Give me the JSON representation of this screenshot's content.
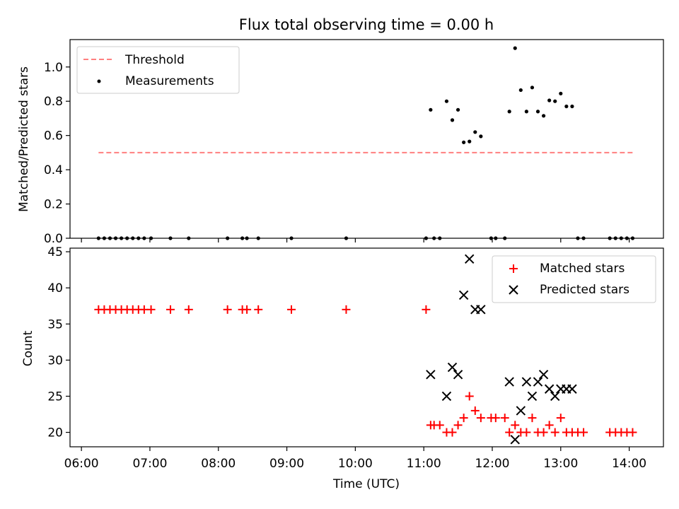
{
  "chart_data": [
    {
      "type": "scatter",
      "title": "Flux total observing time = 0.00 h",
      "xlabel": "",
      "ylabel": "Matched/Predicted stars",
      "xlim": [
        "05:50",
        "14:30"
      ],
      "ylim": [
        0,
        1.16
      ],
      "yticks": [
        "0.0",
        "0.2",
        "0.4",
        "0.6",
        "0.8",
        "1.0"
      ],
      "grid": false,
      "legend_position": "top-left",
      "threshold": {
        "name": "Threshold",
        "value": 0.5,
        "x_start": "06:15",
        "x_end": "14:03",
        "color": "#ff7f7f"
      },
      "series": [
        {
          "name": "Measurements",
          "color": "#000000",
          "points": [
            [
              "06:15",
              0
            ],
            [
              "06:20",
              0
            ],
            [
              "06:25",
              0
            ],
            [
              "06:30",
              0
            ],
            [
              "06:35",
              0
            ],
            [
              "06:40",
              0
            ],
            [
              "06:45",
              0
            ],
            [
              "06:50",
              0
            ],
            [
              "06:55",
              0
            ],
            [
              "07:01",
              0
            ],
            [
              "07:18",
              0
            ],
            [
              "07:34",
              0
            ],
            [
              "08:08",
              0
            ],
            [
              "08:21",
              0
            ],
            [
              "08:25",
              0
            ],
            [
              "08:35",
              0
            ],
            [
              "09:04",
              0
            ],
            [
              "09:52",
              0
            ],
            [
              "11:02",
              0
            ],
            [
              "11:06",
              0.75
            ],
            [
              "11:09",
              0
            ],
            [
              "11:14",
              0
            ],
            [
              "11:20",
              0.8
            ],
            [
              "11:25",
              0.69
            ],
            [
              "11:30",
              0.75
            ],
            [
              "11:35",
              0.56
            ],
            [
              "11:40",
              0.565
            ],
            [
              "11:45",
              0.62
            ],
            [
              "11:50",
              0.595
            ],
            [
              "11:59",
              0
            ],
            [
              "12:03",
              0
            ],
            [
              "12:11",
              0
            ],
            [
              "12:15",
              0.74
            ],
            [
              "12:20",
              1.11
            ],
            [
              "12:25",
              0.865
            ],
            [
              "12:30",
              0.74
            ],
            [
              "12:35",
              0.88
            ],
            [
              "12:40",
              0.74
            ],
            [
              "12:45",
              0.715
            ],
            [
              "12:50",
              0.805
            ],
            [
              "12:55",
              0.8
            ],
            [
              "13:00",
              0.845
            ],
            [
              "13:05",
              0.77
            ],
            [
              "13:10",
              0.77
            ],
            [
              "13:15",
              0
            ],
            [
              "13:20",
              0
            ],
            [
              "13:43",
              0
            ],
            [
              "13:48",
              0
            ],
            [
              "13:53",
              0
            ],
            [
              "13:58",
              0
            ],
            [
              "14:03",
              0
            ]
          ]
        }
      ]
    },
    {
      "type": "scatter",
      "title": "",
      "xlabel": "Time (UTC)",
      "ylabel": "Count",
      "xlim": [
        "05:50",
        "14:30"
      ],
      "ylim": [
        18,
        45.5
      ],
      "yticks": [
        "20",
        "25",
        "30",
        "35",
        "40",
        "45"
      ],
      "xticks": [
        "06:00",
        "07:00",
        "08:00",
        "09:00",
        "10:00",
        "11:00",
        "12:00",
        "13:00",
        "14:00"
      ],
      "grid": false,
      "legend_position": "top-right",
      "series": [
        {
          "name": "Matched stars",
          "marker": "plus",
          "color": "#ff0000",
          "points": [
            [
              "06:15",
              37
            ],
            [
              "06:20",
              37
            ],
            [
              "06:25",
              37
            ],
            [
              "06:30",
              37
            ],
            [
              "06:35",
              37
            ],
            [
              "06:40",
              37
            ],
            [
              "06:45",
              37
            ],
            [
              "06:50",
              37
            ],
            [
              "06:55",
              37
            ],
            [
              "07:01",
              37
            ],
            [
              "07:18",
              37
            ],
            [
              "07:34",
              37
            ],
            [
              "08:08",
              37
            ],
            [
              "08:21",
              37
            ],
            [
              "08:25",
              37
            ],
            [
              "08:35",
              37
            ],
            [
              "09:04",
              37
            ],
            [
              "09:52",
              37
            ],
            [
              "11:02",
              37
            ],
            [
              "11:06",
              21
            ],
            [
              "11:09",
              21
            ],
            [
              "11:14",
              21
            ],
            [
              "11:20",
              20
            ],
            [
              "11:25",
              20
            ],
            [
              "11:30",
              21
            ],
            [
              "11:35",
              22
            ],
            [
              "11:40",
              25
            ],
            [
              "11:45",
              23
            ],
            [
              "11:50",
              22
            ],
            [
              "11:59",
              22
            ],
            [
              "12:03",
              22
            ],
            [
              "12:11",
              22
            ],
            [
              "12:15",
              20
            ],
            [
              "12:20",
              21
            ],
            [
              "12:25",
              20
            ],
            [
              "12:30",
              20
            ],
            [
              "12:35",
              22
            ],
            [
              "12:40",
              20
            ],
            [
              "12:45",
              20
            ],
            [
              "12:50",
              21
            ],
            [
              "12:55",
              20
            ],
            [
              "13:00",
              22
            ],
            [
              "13:05",
              20
            ],
            [
              "13:10",
              20
            ],
            [
              "13:15",
              20
            ],
            [
              "13:20",
              20
            ],
            [
              "13:43",
              20
            ],
            [
              "13:48",
              20
            ],
            [
              "13:53",
              20
            ],
            [
              "13:58",
              20
            ],
            [
              "14:03",
              20
            ]
          ]
        },
        {
          "name": "Predicted stars",
          "marker": "x",
          "color": "#000000",
          "points": [
            [
              "11:06",
              28
            ],
            [
              "11:20",
              25
            ],
            [
              "11:25",
              29
            ],
            [
              "11:30",
              28
            ],
            [
              "11:35",
              39
            ],
            [
              "11:40",
              44
            ],
            [
              "11:45",
              37
            ],
            [
              "11:50",
              37
            ],
            [
              "12:15",
              27
            ],
            [
              "12:20",
              19
            ],
            [
              "12:25",
              23
            ],
            [
              "12:30",
              27
            ],
            [
              "12:35",
              25
            ],
            [
              "12:40",
              27
            ],
            [
              "12:45",
              28
            ],
            [
              "12:50",
              26
            ],
            [
              "12:55",
              25
            ],
            [
              "13:00",
              26
            ],
            [
              "13:05",
              26
            ],
            [
              "13:10",
              26
            ]
          ]
        }
      ]
    }
  ]
}
